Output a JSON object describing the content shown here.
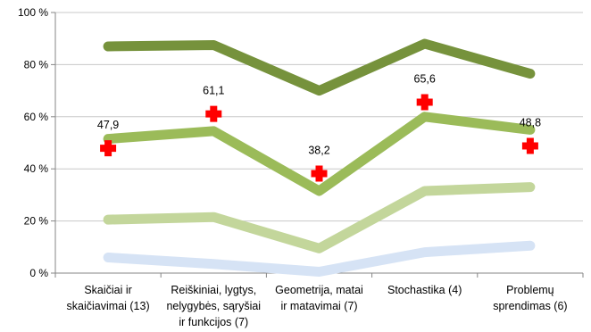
{
  "chart_data": {
    "type": "line",
    "categories": [
      [
        "Skaičiai ir",
        "skaičiavimai (13)"
      ],
      [
        "Reiškiniai, lygtys,",
        "nelygybės, sąryšiai",
        "ir funkcijos (7)"
      ],
      [
        "Geometrija, matai",
        "ir matavimai (7)"
      ],
      [
        "Stochastika (4)"
      ],
      [
        "Problemų",
        "sprendimas (6)"
      ]
    ],
    "ylim": [
      0,
      100
    ],
    "yticks": [
      0,
      20,
      40,
      60,
      80,
      100
    ],
    "ytick_labels": [
      "0 %",
      "20 %",
      "40 %",
      "60 %",
      "80 %",
      "100 %"
    ],
    "grid": true,
    "series": [
      {
        "values": [
          6,
          3.5,
          0.5,
          8,
          10.5
        ],
        "color": "#d6e3f5"
      },
      {
        "values": [
          20.5,
          21.5,
          9.5,
          31.5,
          33
        ],
        "color": "#c3d69b"
      },
      {
        "values": [
          51.5,
          54.5,
          31.5,
          60,
          55
        ],
        "color": "#9bbb59"
      },
      {
        "values": [
          87,
          87.5,
          70,
          88,
          76.5
        ],
        "color": "#76923c"
      }
    ],
    "markers": {
      "color": "#ff0000",
      "values": [
        47.9,
        61.1,
        38.2,
        65.6,
        48.8
      ],
      "labels": [
        "47,9",
        "61,1",
        "38,2",
        "65,6",
        "48,8"
      ]
    }
  }
}
